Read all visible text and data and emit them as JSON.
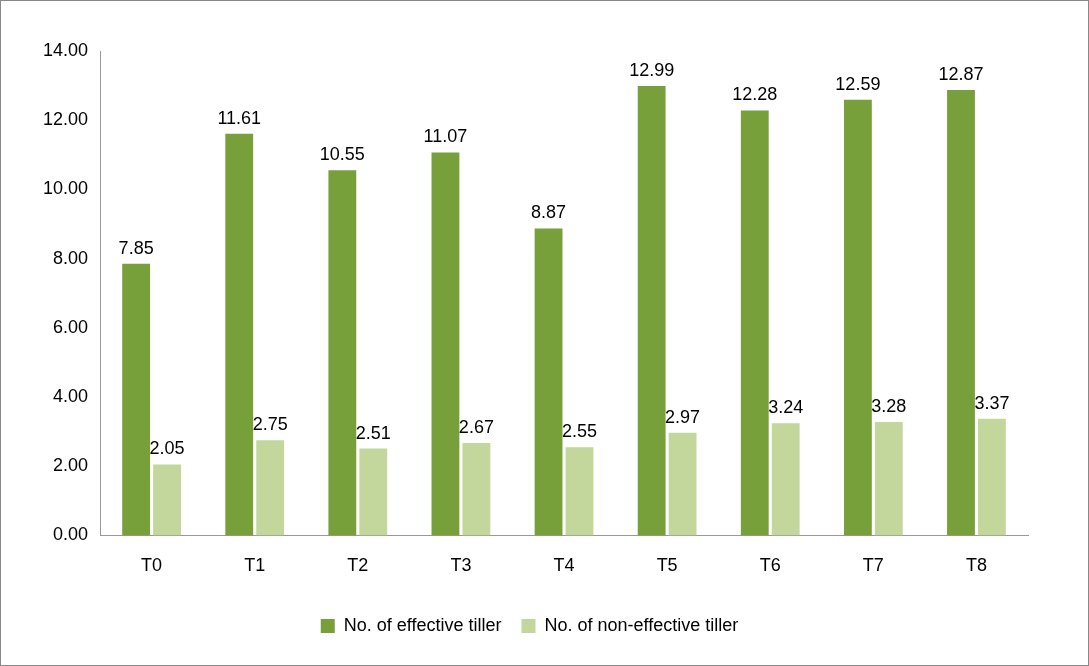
{
  "chart_data": {
    "type": "bar",
    "categories": [
      "T0",
      "T1",
      "T2",
      "T3",
      "T4",
      "T5",
      "T6",
      "T7",
      "T8"
    ],
    "series": [
      {
        "name": "No. of effective tiller",
        "color": "#77a03a",
        "values": [
          7.85,
          11.61,
          10.55,
          11.07,
          8.87,
          12.99,
          12.28,
          12.59,
          12.87
        ]
      },
      {
        "name": "No. of non-effective tiller",
        "color": "#c3d69b",
        "values": [
          2.05,
          2.75,
          2.51,
          2.67,
          2.55,
          2.97,
          3.24,
          3.28,
          3.37
        ]
      }
    ],
    "ylim": [
      0,
      14
    ],
    "yticks": [
      {
        "value": 0,
        "label": "0.00"
      },
      {
        "value": 2,
        "label": "2.00"
      },
      {
        "value": 4,
        "label": "4.00"
      },
      {
        "value": 6,
        "label": "6.00"
      },
      {
        "value": 8,
        "label": "8.00"
      },
      {
        "value": 10,
        "label": "10.00"
      },
      {
        "value": 12,
        "label": "12.00"
      },
      {
        "value": 14,
        "label": "14.00"
      }
    ],
    "grid": false,
    "legend": "bottom",
    "data_labels": true
  }
}
